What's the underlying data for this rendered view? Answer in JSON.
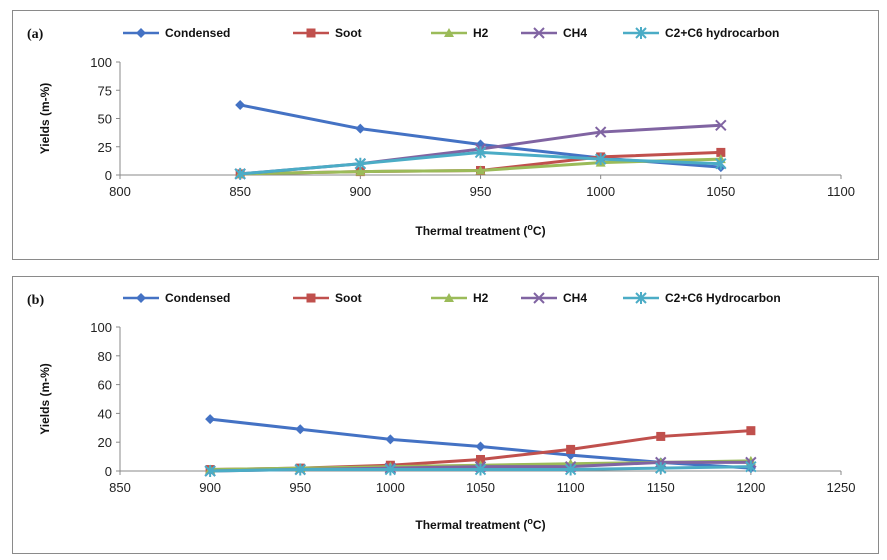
{
  "chart_data": [
    {
      "type": "line",
      "panel_label": "(a)",
      "xlabel": "Thermal treatment (",
      "xlabel_sup": "o",
      "xlabel_end": "C)",
      "ylabel": "Yields (m-%)",
      "xlim": [
        800,
        1100
      ],
      "ylim": [
        0,
        100
      ],
      "xticks": [
        800,
        850,
        900,
        950,
        1000,
        1050,
        1100
      ],
      "yticks": [
        0,
        25,
        50,
        75,
        100
      ],
      "x": [
        850,
        900,
        950,
        1000,
        1050
      ],
      "grid": false,
      "legend_position": "top",
      "series": [
        {
          "name": "Condensed",
          "color": "#4472c4",
          "marker": "diamond",
          "values": [
            62,
            41,
            27,
            15,
            7
          ]
        },
        {
          "name": "Soot",
          "color": "#c0504d",
          "marker": "square",
          "values": [
            1,
            3,
            4,
            16,
            20
          ]
        },
        {
          "name": "H2",
          "color": "#9bbb59",
          "marker": "triangle",
          "values": [
            1,
            3,
            4,
            11,
            14
          ]
        },
        {
          "name": "CH4",
          "color": "#8064a2",
          "marker": "x",
          "values": [
            1,
            10,
            23,
            38,
            44
          ]
        },
        {
          "name": "C2+C6 hydrocarbon",
          "color": "#4bacc6",
          "marker": "star",
          "values": [
            1,
            10,
            20,
            14,
            10
          ]
        }
      ]
    },
    {
      "type": "line",
      "panel_label": "(b)",
      "xlabel": "Thermal treatment (",
      "xlabel_sup": "o",
      "xlabel_end": "C)",
      "ylabel": "Yields (m-%)",
      "xlim": [
        850,
        1250
      ],
      "ylim": [
        0,
        100
      ],
      "xticks": [
        850,
        900,
        950,
        1000,
        1050,
        1100,
        1150,
        1200,
        1250
      ],
      "yticks": [
        0,
        20,
        40,
        60,
        80,
        100
      ],
      "x": [
        900,
        950,
        1000,
        1050,
        1100,
        1150,
        1200
      ],
      "grid": false,
      "legend_position": "top",
      "series": [
        {
          "name": "Condensed",
          "color": "#4472c4",
          "marker": "diamond",
          "values": [
            36,
            29,
            22,
            17,
            11,
            6,
            2
          ]
        },
        {
          "name": "Soot",
          "color": "#c0504d",
          "marker": "square",
          "values": [
            1,
            2,
            4,
            8,
            15,
            24,
            28
          ]
        },
        {
          "name": "H2",
          "color": "#9bbb59",
          "marker": "triangle",
          "values": [
            1,
            2,
            3,
            4,
            5,
            6,
            7
          ]
        },
        {
          "name": "CH4",
          "color": "#8064a2",
          "marker": "x",
          "values": [
            0,
            1,
            2,
            3,
            3,
            6,
            6
          ]
        },
        {
          "name": "C2+C6 Hydrocarbon",
          "color": "#4bacc6",
          "marker": "star",
          "values": [
            0,
            1,
            1,
            1,
            1,
            2,
            3
          ]
        }
      ]
    }
  ]
}
